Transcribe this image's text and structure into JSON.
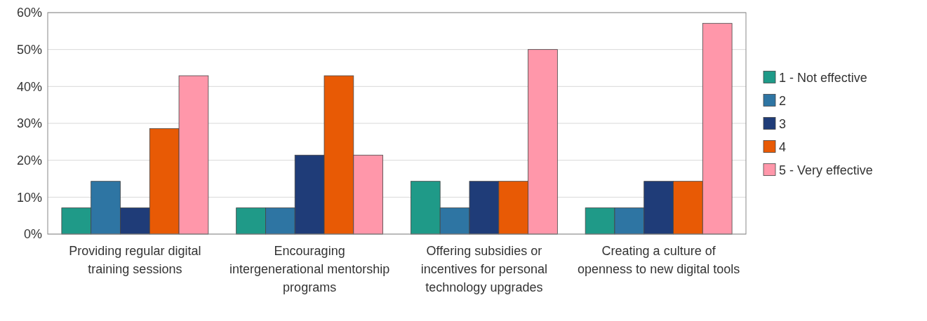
{
  "chart_data": {
    "type": "bar",
    "categories": [
      "Providing regular digital training sessions",
      "Encouraging intergenerational mentorship programs",
      "Offering subsidies or incentives for personal technology upgrades",
      "Creating a culture of openness to new digital tools"
    ],
    "series": [
      {
        "name": "1 - Not effective",
        "color": "#1f9a88",
        "values": [
          7.1,
          7.1,
          14.3,
          7.1
        ]
      },
      {
        "name": "2",
        "color": "#2e75a3",
        "values": [
          14.3,
          7.1,
          7.1,
          7.1
        ]
      },
      {
        "name": "3",
        "color": "#1f3c78",
        "values": [
          7.1,
          21.4,
          14.3,
          14.3
        ]
      },
      {
        "name": "4",
        "color": "#e85a05",
        "values": [
          28.6,
          42.9,
          14.3,
          14.3
        ]
      },
      {
        "name": "5 - Very effective",
        "color": "#ff97aa",
        "values": [
          42.9,
          21.4,
          50,
          57.1
        ]
      }
    ],
    "ylim": [
      0,
      60
    ],
    "yticks": [
      {
        "value": 0,
        "label": "0%"
      },
      {
        "value": 10,
        "label": "10%"
      },
      {
        "value": 20,
        "label": "20%"
      },
      {
        "value": 30,
        "label": "30%"
      },
      {
        "value": 40,
        "label": "40%"
      },
      {
        "value": 50,
        "label": "50%"
      },
      {
        "value": 60,
        "label": "60%"
      }
    ],
    "grid": "y",
    "legend": "right"
  }
}
